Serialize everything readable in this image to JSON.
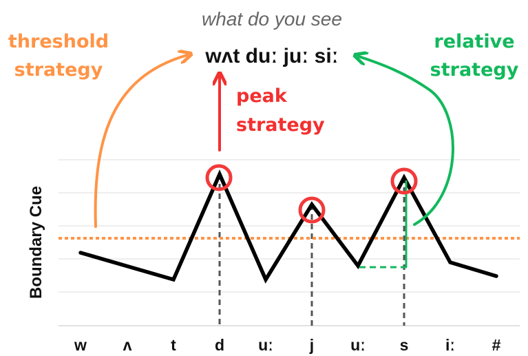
{
  "caption": "what do you see",
  "transcription": "wʌt duː juː siː",
  "ylabel": "Boundary Cue",
  "x_labels": [
    "w",
    "ʌ",
    "t",
    "d",
    "uː",
    "j",
    "uː",
    "s",
    "iː",
    "#"
  ],
  "strategies": {
    "threshold": {
      "line1": "threshold",
      "line2": "strategy",
      "color": "#ff9447"
    },
    "peak": {
      "line1": "peak",
      "line2": "strategy",
      "color": "#f23030"
    },
    "relative": {
      "line1": "relative",
      "line2": "strategy",
      "color": "#12b85c"
    }
  },
  "colors": {
    "curve": "#000000",
    "threshold_line": "#ff9447",
    "guides": "#555555",
    "grid": "#e3e3e3"
  }
}
